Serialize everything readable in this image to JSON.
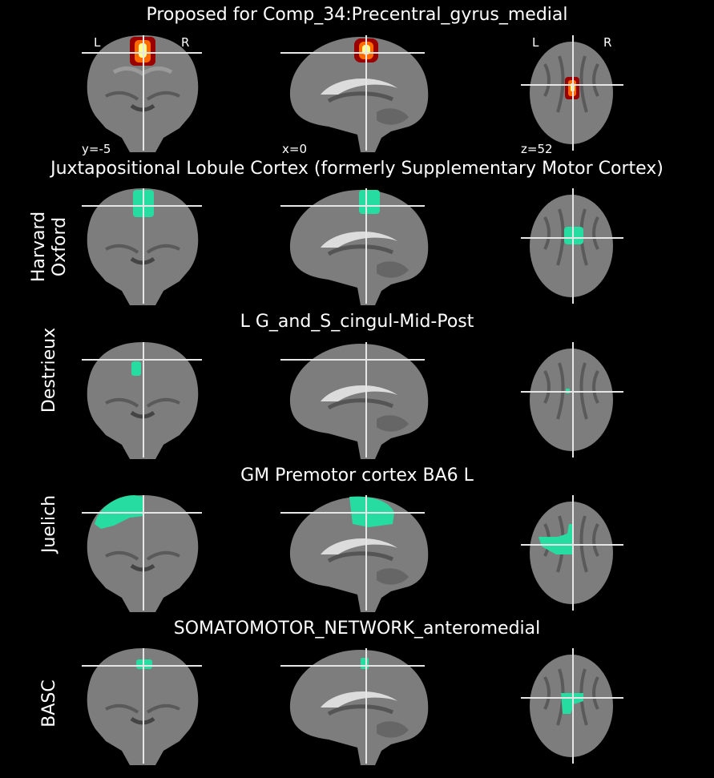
{
  "colors": {
    "background": "#000000",
    "overlay": "#26dca0",
    "crosshair": "#e6e6e6"
  },
  "title": "Proposed for Comp_34:Precentral_gyrus_medial",
  "orientation": {
    "left": "L",
    "right": "R"
  },
  "coords": {
    "y": "y=-5",
    "x": "x=0",
    "z": "z=52"
  },
  "rows": [
    {
      "label": "Harvard\nOxford",
      "region": "Juxtapositional Lobule Cortex (formerly Supplementary Motor Cortex)"
    },
    {
      "label": "Destrieux",
      "region": "L G_and_S_cingul-Mid-Post"
    },
    {
      "label": "Juelich",
      "region": "GM Premotor cortex BA6 L"
    },
    {
      "label": "BASC",
      "region": "SOMATOMOTOR_NETWORK_anteromedial"
    }
  ]
}
